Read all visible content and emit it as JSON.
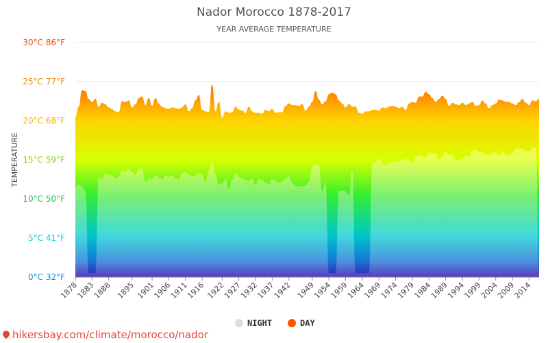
{
  "chart_data": {
    "type": "area",
    "title": "Nador Morocco 1878-2017",
    "subtitle": "YEAR AVERAGE TEMPERATURE",
    "ylabel": "TEMPERATURE",
    "ylim": [
      0,
      30
    ],
    "y_ticks": [
      "0°C 32°F",
      "5°C 41°F",
      "10°C 50°F",
      "15°C 59°F",
      "20°C 68°F",
      "25°C 77°F",
      "30°C 86°F"
    ],
    "y_tick_values": [
      0,
      5,
      10,
      15,
      20,
      25,
      30
    ],
    "y_tick_colors": [
      "#0a8fd4",
      "#10c7d8",
      "#22bb55",
      "#8ccf1a",
      "#f0b400",
      "#f08a00",
      "#f05010"
    ],
    "x_ticks": [
      "1878",
      "1883",
      "1888",
      "1895",
      "1901",
      "1906",
      "1911",
      "1916",
      "1922",
      "1927",
      "1932",
      "1937",
      "1942",
      "1949",
      "1954",
      "1959",
      "1964",
      "1969",
      "1974",
      "1979",
      "1984",
      "1989",
      "1994",
      "1999",
      "2004",
      "2009",
      "2014"
    ],
    "x_range": [
      1878,
      2017
    ],
    "grid": true,
    "legend_position": "bottom",
    "series": [
      {
        "name": "NIGHT",
        "color": "#dddddd",
        "x": [
          1878,
          1879,
          1880,
          1881,
          1882,
          1883,
          1884,
          1885,
          1886,
          1887,
          1888,
          1889,
          1890,
          1891,
          1892,
          1893,
          1894,
          1895,
          1896,
          1897,
          1898,
          1899,
          1900,
          1901,
          1902,
          1903,
          1904,
          1905,
          1906,
          1907,
          1908,
          1909,
          1910,
          1911,
          1912,
          1913,
          1914,
          1915,
          1916,
          1917,
          1918,
          1919,
          1920,
          1921,
          1922,
          1923,
          1924,
          1925,
          1926,
          1927,
          1928,
          1929,
          1930,
          1931,
          1932,
          1933,
          1934,
          1935,
          1936,
          1937,
          1938,
          1939,
          1940,
          1941,
          1942,
          1943,
          1944,
          1945,
          1946,
          1947,
          1948,
          1949,
          1950,
          1951,
          1952,
          1953,
          1954,
          1955,
          1956,
          1957,
          1958,
          1959,
          1960,
          1961,
          1962,
          1963,
          1964,
          1965,
          1966,
          1967,
          1968,
          1969,
          1970,
          1971,
          1972,
          1973,
          1974,
          1975,
          1976,
          1977,
          1978,
          1979,
          1980,
          1981,
          1982,
          1983,
          1984,
          1985,
          1986,
          1987,
          1988,
          1989,
          1990,
          1991,
          1992,
          1993,
          1994,
          1995,
          1996,
          1997,
          1998,
          1999,
          2000,
          2001,
          2002,
          2003,
          2004,
          2005,
          2006,
          2007,
          2008,
          2009,
          2010,
          2011,
          2012,
          2013,
          2014,
          2015,
          2016,
          2017
        ],
        "values": [
          11.5,
          11.8,
          11.6,
          11.0,
          0.5,
          0.5,
          0.5,
          12.8,
          12.5,
          13.2,
          13.1,
          13.0,
          12.6,
          12.8,
          13.6,
          13.5,
          13.9,
          13.4,
          13.1,
          13.8,
          13.9,
          12.2,
          12.6,
          12.5,
          13.0,
          12.7,
          12.5,
          13.0,
          12.8,
          13.0,
          12.6,
          12.5,
          13.3,
          13.4,
          13.1,
          12.8,
          13.0,
          13.3,
          13.1,
          12.2,
          13.5,
          14.7,
          13.1,
          11.8,
          12.0,
          12.5,
          11.3,
          12.4,
          13.3,
          12.8,
          12.6,
          12.4,
          12.3,
          12.6,
          11.8,
          12.6,
          12.4,
          12.1,
          11.9,
          12.5,
          12.3,
          12.1,
          12.2,
          12.6,
          12.9,
          12.0,
          11.7,
          11.6,
          11.6,
          11.7,
          12.1,
          14.2,
          14.5,
          14.3,
          11.0,
          12.1,
          0.5,
          0.5,
          0.5,
          11.0,
          11.1,
          11.0,
          10.5,
          13.7,
          0.5,
          0.5,
          0.5,
          0.5,
          0.5,
          14.5,
          14.7,
          15.2,
          14.5,
          14.3,
          14.6,
          14.8,
          14.7,
          14.8,
          15.0,
          15.2,
          14.9,
          14.6,
          15.4,
          15.6,
          15.4,
          15.3,
          15.9,
          15.8,
          15.8,
          15.0,
          15.4,
          16.0,
          15.6,
          15.7,
          15.0,
          14.9,
          15.2,
          15.5,
          15.4,
          16.2,
          16.3,
          16.0,
          16.0,
          15.8,
          15.6,
          15.8,
          16.0,
          15.6,
          16.1,
          15.8,
          15.6,
          15.9,
          16.4,
          16.5,
          16.4,
          16.2,
          16.1,
          16.5,
          16.6,
          0.5
        ],
        "gaps": [
          [
            1882,
            1884
          ],
          [
            1956,
            1958
          ],
          [
            1962,
            1966
          ],
          [
            2017,
            2017
          ]
        ]
      },
      {
        "name": "DAY",
        "color": "#ff5500",
        "x": [
          1878,
          1879,
          1880,
          1881,
          1882,
          1883,
          1884,
          1885,
          1886,
          1887,
          1888,
          1889,
          1890,
          1891,
          1892,
          1893,
          1894,
          1895,
          1896,
          1897,
          1898,
          1899,
          1900,
          1901,
          1902,
          1903,
          1904,
          1905,
          1906,
          1907,
          1908,
          1909,
          1910,
          1911,
          1912,
          1913,
          1914,
          1915,
          1916,
          1917,
          1918,
          1919,
          1920,
          1921,
          1922,
          1923,
          1924,
          1925,
          1926,
          1927,
          1928,
          1929,
          1930,
          1931,
          1932,
          1933,
          1934,
          1935,
          1936,
          1937,
          1938,
          1939,
          1940,
          1941,
          1942,
          1943,
          1944,
          1945,
          1946,
          1947,
          1948,
          1949,
          1950,
          1951,
          1952,
          1953,
          1954,
          1955,
          1956,
          1957,
          1958,
          1959,
          1960,
          1961,
          1962,
          1963,
          1964,
          1965,
          1966,
          1967,
          1968,
          1969,
          1970,
          1971,
          1972,
          1973,
          1974,
          1975,
          1976,
          1977,
          1978,
          1979,
          1980,
          1981,
          1982,
          1983,
          1984,
          1985,
          1986,
          1987,
          1988,
          1989,
          1990,
          1991,
          1992,
          1993,
          1994,
          1995,
          1996,
          1997,
          1998,
          1999,
          2000,
          2001,
          2002,
          2003,
          2004,
          2005,
          2006,
          2007,
          2008,
          2009,
          2010,
          2011,
          2012,
          2013,
          2014,
          2015,
          2016,
          2017
        ],
        "values": [
          20.5,
          21.8,
          23.9,
          23.8,
          22.8,
          22.4,
          22.8,
          21.8,
          22.3,
          22.1,
          21.7,
          21.5,
          21.2,
          21.1,
          22.5,
          22.4,
          22.6,
          21.7,
          22.1,
          22.9,
          23.1,
          22.0,
          22.9,
          21.9,
          22.9,
          22.2,
          21.8,
          21.6,
          21.5,
          21.7,
          21.6,
          21.5,
          21.7,
          22.1,
          21.2,
          21.6,
          22.6,
          23.3,
          21.4,
          21.2,
          21.1,
          24.6,
          21.2,
          22.4,
          20.4,
          21.2,
          21.0,
          21.1,
          21.8,
          21.4,
          21.3,
          21.0,
          21.8,
          21.2,
          21.0,
          21.0,
          20.9,
          21.4,
          21.2,
          21.5,
          21.0,
          21.1,
          21.1,
          21.9,
          22.2,
          22.0,
          22.0,
          21.9,
          22.1,
          21.3,
          21.8,
          22.4,
          23.8,
          22.7,
          22.1,
          22.5,
          23.4,
          23.6,
          23.4,
          22.6,
          22.2,
          21.7,
          22.1,
          21.8,
          21.8,
          21.0,
          20.9,
          21.2,
          21.2,
          21.4,
          21.4,
          21.3,
          21.7,
          21.6,
          21.8,
          21.9,
          21.8,
          21.6,
          21.8,
          21.4,
          22.2,
          22.4,
          22.3,
          23.1,
          23.1,
          23.7,
          23.4,
          22.9,
          22.4,
          22.8,
          23.2,
          22.8,
          21.9,
          22.3,
          22.1,
          22.0,
          22.3,
          22.0,
          22.2,
          22.4,
          21.9,
          22.0,
          22.6,
          22.2,
          21.6,
          22.0,
          22.2,
          22.7,
          22.6,
          22.4,
          22.4,
          22.2,
          22.0,
          22.4,
          22.8,
          22.3,
          22.0,
          22.6,
          22.5,
          22.8
        ]
      }
    ]
  },
  "legend": {
    "night_label": "NIGHT",
    "day_label": "DAY",
    "night_color": "#dddddd",
    "day_color": "#ff5500"
  },
  "footer": {
    "source_text": "hikersbay.com/climate/morocco/nador"
  }
}
